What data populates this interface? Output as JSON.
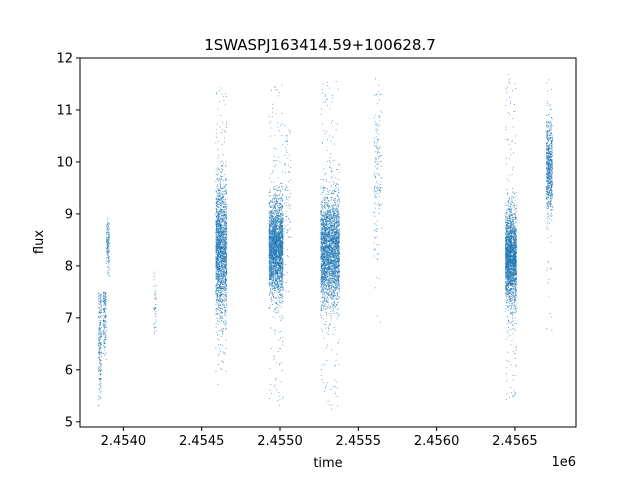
{
  "chart_data": {
    "type": "scatter",
    "title": "1SWASPJ163414.59+100628.7",
    "xlabel": "time",
    "ylabel": "flux",
    "x_offset_label": "1e6",
    "xlim": [
      2453723,
      2456890
    ],
    "ylim": [
      4.9,
      12.0
    ],
    "x_ticks": [
      2454000,
      2454500,
      2455000,
      2455500,
      2456000,
      2456500
    ],
    "x_tick_labels": [
      "2.4540",
      "2.4545",
      "2.4550",
      "2.4555",
      "2.4560",
      "2.4565"
    ],
    "y_ticks": [
      5,
      6,
      7,
      8,
      9,
      10,
      11,
      12
    ],
    "y_tick_labels": [
      "5",
      "6",
      "7",
      "8",
      "9",
      "10",
      "11",
      "12"
    ],
    "grid": false,
    "legend": "none",
    "marker_color": "#1f77b4",
    "clusters": [
      {
        "x_start": 2453840,
        "x_end": 2453860,
        "y_center": 6.6,
        "y_spread": 0.55,
        "y_min": 5.2,
        "y_max": 7.5,
        "count": 220
      },
      {
        "x_start": 2453870,
        "x_end": 2453890,
        "y_center": 7.0,
        "y_spread": 0.35,
        "y_min": 6.2,
        "y_max": 7.5,
        "count": 160
      },
      {
        "x_start": 2453892,
        "x_end": 2453912,
        "y_center": 8.45,
        "y_spread": 0.25,
        "y_min": 7.8,
        "y_max": 9.0,
        "count": 140
      },
      {
        "x_start": 2454195,
        "x_end": 2454210,
        "y_center": 7.3,
        "y_spread": 0.35,
        "y_min": 6.5,
        "y_max": 7.9,
        "count": 40
      },
      {
        "x_start": 2454590,
        "x_end": 2454660,
        "y_center": 8.3,
        "y_spread": 0.65,
        "y_min": 5.7,
        "y_max": 11.5,
        "count": 2000
      },
      {
        "x_start": 2454930,
        "x_end": 2455020,
        "y_center": 8.35,
        "y_spread": 0.45,
        "y_min": 5.3,
        "y_max": 11.5,
        "count": 2600
      },
      {
        "x_start": 2455030,
        "x_end": 2455070,
        "y_center": 9.2,
        "y_spread": 0.75,
        "y_min": 7.5,
        "y_max": 10.7,
        "count": 80
      },
      {
        "x_start": 2455260,
        "x_end": 2455380,
        "y_center": 8.3,
        "y_spread": 0.5,
        "y_min": 5.2,
        "y_max": 11.6,
        "count": 2900
      },
      {
        "x_start": 2455600,
        "x_end": 2455650,
        "y_center": 9.8,
        "y_spread": 0.85,
        "y_min": 6.8,
        "y_max": 11.6,
        "count": 160
      },
      {
        "x_start": 2456440,
        "x_end": 2456510,
        "y_center": 8.15,
        "y_spread": 0.45,
        "y_min": 5.4,
        "y_max": 11.7,
        "count": 2300
      },
      {
        "x_start": 2456700,
        "x_end": 2456740,
        "y_center": 9.9,
        "y_spread": 0.45,
        "y_min": 6.7,
        "y_max": 11.6,
        "count": 700
      }
    ]
  }
}
